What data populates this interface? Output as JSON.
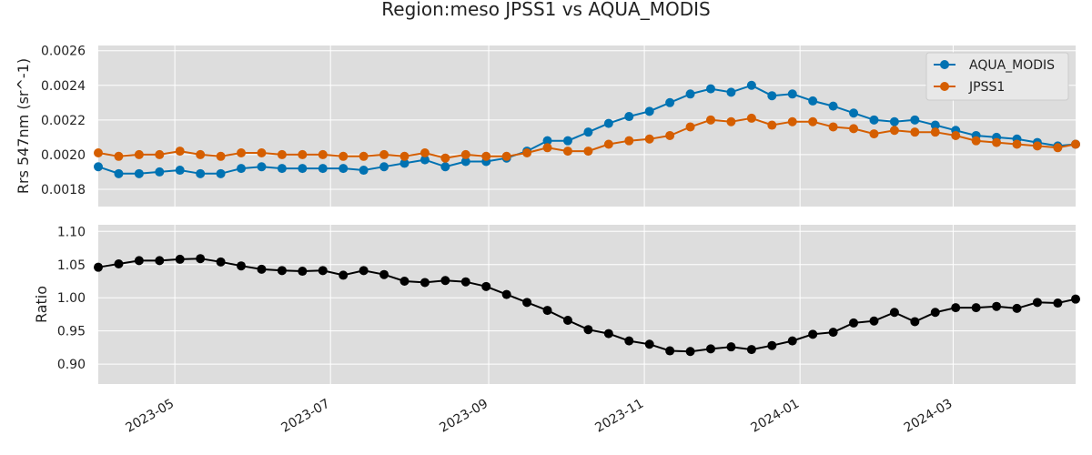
{
  "title": "Region:meso JPSS1 vs AQUA_MODIS",
  "chart_data": [
    {
      "type": "line",
      "ylabel": "Rrs 547nm (sr^-1)",
      "ylim": [
        0.0017,
        0.00263
      ],
      "yticks": [
        "0.0018",
        "0.0020",
        "0.0022",
        "0.0024",
        "0.0026"
      ],
      "xlim": [
        "2023-04-01",
        "2024-04-18"
      ],
      "legend_position": "top-right",
      "grid": true,
      "series": [
        {
          "name": "AQUA_MODIS",
          "color": "#0072b2",
          "points": [
            [
              "2023-04-01",
              0.00193
            ],
            [
              "2023-04-09",
              0.00189
            ],
            [
              "2023-04-17",
              0.00189
            ],
            [
              "2023-04-25",
              0.0019
            ],
            [
              "2023-05-03",
              0.00191
            ],
            [
              "2023-05-11",
              0.00189
            ],
            [
              "2023-05-19",
              0.00189
            ],
            [
              "2023-05-27",
              0.00192
            ],
            [
              "2023-06-04",
              0.00193
            ],
            [
              "2023-06-12",
              0.00192
            ],
            [
              "2023-06-20",
              0.00192
            ],
            [
              "2023-06-28",
              0.00192
            ],
            [
              "2023-07-06",
              0.00192
            ],
            [
              "2023-07-14",
              0.00191
            ],
            [
              "2023-07-22",
              0.00193
            ],
            [
              "2023-07-30",
              0.00195
            ],
            [
              "2023-08-07",
              0.00197
            ],
            [
              "2023-08-15",
              0.00193
            ],
            [
              "2023-08-23",
              0.00196
            ],
            [
              "2023-08-31",
              0.00196
            ],
            [
              "2023-09-08",
              0.00198
            ],
            [
              "2023-09-16",
              0.00202
            ],
            [
              "2023-09-24",
              0.00208
            ],
            [
              "2023-10-02",
              0.00208
            ],
            [
              "2023-10-10",
              0.00213
            ],
            [
              "2023-10-18",
              0.00218
            ],
            [
              "2023-10-26",
              0.00222
            ],
            [
              "2023-11-03",
              0.00225
            ],
            [
              "2023-11-11",
              0.0023
            ],
            [
              "2023-11-19",
              0.00235
            ],
            [
              "2023-11-27",
              0.00238
            ],
            [
              "2023-12-05",
              0.00236
            ],
            [
              "2023-12-13",
              0.0024
            ],
            [
              "2023-12-21",
              0.00234
            ],
            [
              "2023-12-29",
              0.00235
            ],
            [
              "2024-01-06",
              0.00231
            ],
            [
              "2024-01-14",
              0.00228
            ],
            [
              "2024-01-22",
              0.00224
            ],
            [
              "2024-01-30",
              0.0022
            ],
            [
              "2024-02-07",
              0.00219
            ],
            [
              "2024-02-15",
              0.0022
            ],
            [
              "2024-02-23",
              0.00217
            ],
            [
              "2024-03-02",
              0.00214
            ],
            [
              "2024-03-10",
              0.00211
            ],
            [
              "2024-03-18",
              0.0021
            ],
            [
              "2024-03-26",
              0.00209
            ],
            [
              "2024-04-03",
              0.00207
            ],
            [
              "2024-04-11",
              0.00205
            ],
            [
              "2024-04-18",
              0.00206
            ]
          ]
        },
        {
          "name": "JPSS1",
          "color": "#d55e00",
          "points": [
            [
              "2023-04-01",
              0.00201
            ],
            [
              "2023-04-09",
              0.00199
            ],
            [
              "2023-04-17",
              0.002
            ],
            [
              "2023-04-25",
              0.002
            ],
            [
              "2023-05-03",
              0.00202
            ],
            [
              "2023-05-11",
              0.002
            ],
            [
              "2023-05-19",
              0.00199
            ],
            [
              "2023-05-27",
              0.00201
            ],
            [
              "2023-06-04",
              0.00201
            ],
            [
              "2023-06-12",
              0.002
            ],
            [
              "2023-06-20",
              0.002
            ],
            [
              "2023-06-28",
              0.002
            ],
            [
              "2023-07-06",
              0.00199
            ],
            [
              "2023-07-14",
              0.00199
            ],
            [
              "2023-07-22",
              0.002
            ],
            [
              "2023-07-30",
              0.00199
            ],
            [
              "2023-08-07",
              0.00201
            ],
            [
              "2023-08-15",
              0.00198
            ],
            [
              "2023-08-23",
              0.002
            ],
            [
              "2023-08-31",
              0.00199
            ],
            [
              "2023-09-08",
              0.00199
            ],
            [
              "2023-09-16",
              0.00201
            ],
            [
              "2023-09-24",
              0.00204
            ],
            [
              "2023-10-02",
              0.00202
            ],
            [
              "2023-10-10",
              0.00202
            ],
            [
              "2023-10-18",
              0.00206
            ],
            [
              "2023-10-26",
              0.00208
            ],
            [
              "2023-11-03",
              0.00209
            ],
            [
              "2023-11-11",
              0.00211
            ],
            [
              "2023-11-19",
              0.00216
            ],
            [
              "2023-11-27",
              0.0022
            ],
            [
              "2023-12-05",
              0.00219
            ],
            [
              "2023-12-13",
              0.00221
            ],
            [
              "2023-12-21",
              0.00217
            ],
            [
              "2023-12-29",
              0.00219
            ],
            [
              "2024-01-06",
              0.00219
            ],
            [
              "2024-01-14",
              0.00216
            ],
            [
              "2024-01-22",
              0.00215
            ],
            [
              "2024-01-30",
              0.00212
            ],
            [
              "2024-02-07",
              0.00214
            ],
            [
              "2024-02-15",
              0.00213
            ],
            [
              "2024-02-23",
              0.00213
            ],
            [
              "2024-03-02",
              0.00211
            ],
            [
              "2024-03-10",
              0.00208
            ],
            [
              "2024-03-18",
              0.00207
            ],
            [
              "2024-03-26",
              0.00206
            ],
            [
              "2024-04-03",
              0.00205
            ],
            [
              "2024-04-11",
              0.00204
            ],
            [
              "2024-04-18",
              0.00206
            ]
          ]
        }
      ]
    },
    {
      "type": "line",
      "ylabel": "Ratio",
      "xlabel": "",
      "ylim": [
        0.87,
        1.11
      ],
      "yticks": [
        "0.90",
        "0.95",
        "1.00",
        "1.05",
        "1.10"
      ],
      "xlim": [
        "2023-04-01",
        "2024-04-18"
      ],
      "xticks": [
        "2023-05",
        "2023-07",
        "2023-09",
        "2023-11",
        "2024-01",
        "2024-03"
      ],
      "grid": true,
      "series": [
        {
          "color": "#000000",
          "points": [
            [
              "2023-04-01",
              1.046
            ],
            [
              "2023-04-09",
              1.051
            ],
            [
              "2023-04-17",
              1.056
            ],
            [
              "2023-04-25",
              1.056
            ],
            [
              "2023-05-03",
              1.058
            ],
            [
              "2023-05-11",
              1.059
            ],
            [
              "2023-05-19",
              1.054
            ],
            [
              "2023-05-27",
              1.048
            ],
            [
              "2023-06-04",
              1.043
            ],
            [
              "2023-06-12",
              1.041
            ],
            [
              "2023-06-20",
              1.04
            ],
            [
              "2023-06-28",
              1.041
            ],
            [
              "2023-07-06",
              1.034
            ],
            [
              "2023-07-14",
              1.041
            ],
            [
              "2023-07-22",
              1.035
            ],
            [
              "2023-07-30",
              1.025
            ],
            [
              "2023-08-07",
              1.023
            ],
            [
              "2023-08-15",
              1.026
            ],
            [
              "2023-08-23",
              1.024
            ],
            [
              "2023-08-31",
              1.017
            ],
            [
              "2023-09-08",
              1.005
            ],
            [
              "2023-09-16",
              0.993
            ],
            [
              "2023-09-24",
              0.981
            ],
            [
              "2023-10-02",
              0.966
            ],
            [
              "2023-10-10",
              0.952
            ],
            [
              "2023-10-18",
              0.946
            ],
            [
              "2023-10-26",
              0.935
            ],
            [
              "2023-11-03",
              0.93
            ],
            [
              "2023-11-11",
              0.92
            ],
            [
              "2023-11-19",
              0.919
            ],
            [
              "2023-11-27",
              0.923
            ],
            [
              "2023-12-05",
              0.926
            ],
            [
              "2023-12-13",
              0.922
            ],
            [
              "2023-12-21",
              0.928
            ],
            [
              "2023-12-29",
              0.935
            ],
            [
              "2024-01-06",
              0.945
            ],
            [
              "2024-01-14",
              0.948
            ],
            [
              "2024-01-22",
              0.962
            ],
            [
              "2024-01-30",
              0.965
            ],
            [
              "2024-02-07",
              0.978
            ],
            [
              "2024-02-15",
              0.964
            ],
            [
              "2024-02-23",
              0.978
            ],
            [
              "2024-03-02",
              0.985
            ],
            [
              "2024-03-10",
              0.985
            ],
            [
              "2024-03-18",
              0.987
            ],
            [
              "2024-03-26",
              0.984
            ],
            [
              "2024-04-03",
              0.993
            ],
            [
              "2024-04-11",
              0.992
            ],
            [
              "2024-04-18",
              0.998
            ]
          ]
        }
      ]
    }
  ]
}
